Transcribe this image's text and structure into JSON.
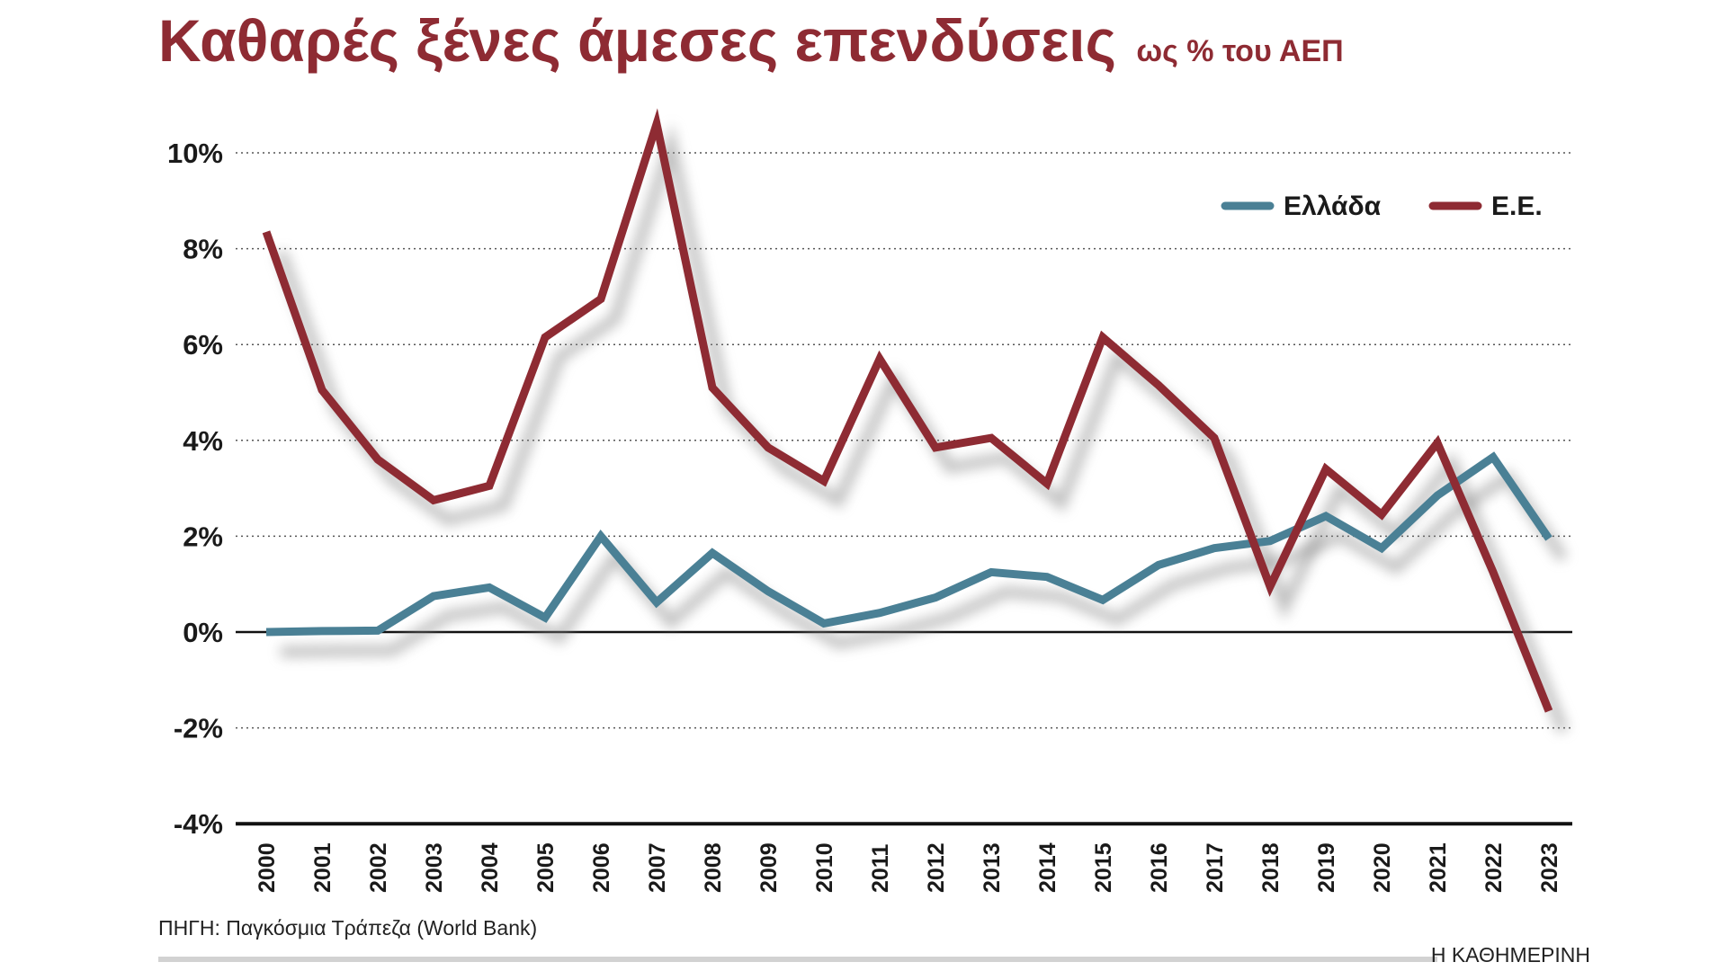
{
  "chart_data": {
    "type": "line",
    "title": "Καθαρές ξένες άμεσες επενδύσεις",
    "subtitle": "ως % του ΑΕΠ",
    "xlabel": "",
    "ylabel": "",
    "ylim": [
      -4,
      10
    ],
    "yticks": [
      10,
      8,
      6,
      4,
      2,
      0,
      -2,
      -4
    ],
    "ytick_labels": [
      "10%",
      "8%",
      "6%",
      "4%",
      "2%",
      "0%",
      "-2%",
      "-4%"
    ],
    "grid": "horizontal dotted",
    "legend_position": "top-right",
    "x": [
      "2000",
      "2001",
      "2002",
      "2003",
      "2004",
      "2005",
      "2006",
      "2007",
      "2008",
      "2009",
      "2010",
      "2011",
      "2012",
      "2013",
      "2014",
      "2015",
      "2016",
      "2017",
      "2018",
      "2019",
      "2020",
      "2021",
      "2022",
      "2023"
    ],
    "series": [
      {
        "name": "Ελλάδα",
        "color": "#4a8095",
        "values": [
          0.0,
          0.02,
          0.03,
          0.75,
          0.93,
          0.3,
          2.0,
          0.62,
          1.65,
          0.85,
          0.18,
          0.4,
          0.72,
          1.25,
          1.15,
          0.67,
          1.4,
          1.75,
          1.9,
          2.42,
          1.75,
          2.85,
          3.65,
          1.95
        ]
      },
      {
        "name": "Ε.Ε.",
        "color": "#8e2b33",
        "values": [
          8.35,
          5.05,
          3.6,
          2.75,
          3.05,
          6.15,
          6.95,
          10.6,
          5.1,
          3.85,
          3.15,
          5.7,
          3.85,
          4.05,
          3.1,
          6.15,
          5.15,
          4.05,
          0.95,
          3.4,
          2.45,
          3.95,
          1.25,
          -1.65
        ]
      }
    ]
  },
  "footer": {
    "source": "ΠΗΓΗ: Παγκόσμια Τράπεζα (World Bank)",
    "brand": "Η ΚΑΘΗΜΕΡΙΝΗ"
  }
}
